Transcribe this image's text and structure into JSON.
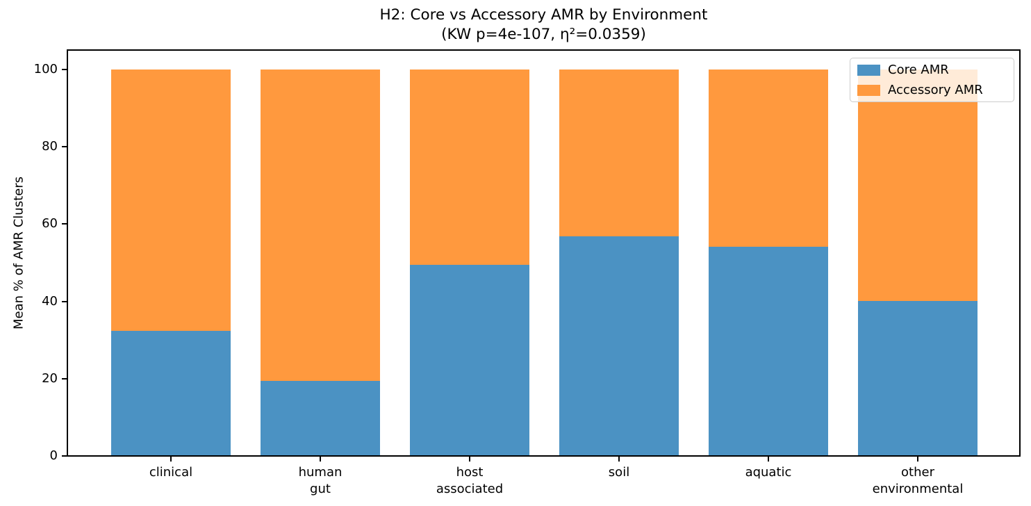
{
  "chart": {
    "title_line1": "H2: Core vs Accessory AMR by Environment",
    "title_line2": "(KW p=4e-107, η²=0.0359)",
    "ylabel": "Mean % of AMR Clusters"
  },
  "chart_data": {
    "type": "bar",
    "stacked": true,
    "title": "H2: Core vs Accessory AMR by Environment\n(KW p=4e-107, η²=0.0359)",
    "xlabel": "",
    "ylabel": "Mean % of AMR Clusters",
    "categories": [
      "clinical",
      "human\ngut",
      "host\nassociated",
      "soil",
      "aquatic",
      "other\nenvironmental"
    ],
    "series": [
      {
        "name": "Core AMR",
        "color": "#4b92c3",
        "values": [
          32.4,
          19.4,
          49.5,
          56.8,
          54.2,
          40.1
        ]
      },
      {
        "name": "Accessory AMR",
        "color": "#ff993e",
        "values": [
          67.6,
          80.6,
          50.5,
          43.2,
          45.8,
          59.9
        ]
      }
    ],
    "stack_total": 100,
    "ylim": [
      0,
      105
    ],
    "yticks": [
      0,
      20,
      40,
      60,
      80,
      100
    ],
    "grid": false,
    "legend": {
      "position": "upper right",
      "entries": [
        "Core AMR",
        "Accessory AMR"
      ]
    }
  }
}
